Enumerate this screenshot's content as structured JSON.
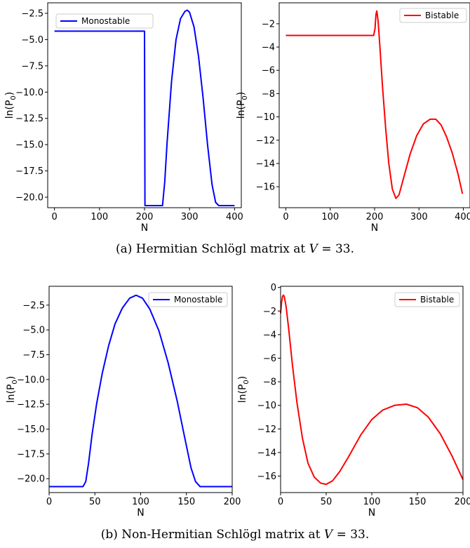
{
  "captions": {
    "a_prefix": "(a) Hermitian Schlögl matrix at ",
    "a_var": "V",
    "a_suffix": " = 33.",
    "b_prefix": "(b) Non-Hermitian Schlögl matrix at ",
    "b_var": "V",
    "b_suffix": " = 33."
  },
  "chart_data": [
    {
      "id": "a-left",
      "type": "line",
      "xlabel": "N",
      "ylabel": "ln(P0)",
      "xlim": [
        -15,
        415
      ],
      "ylim": [
        -21.0,
        -1.5
      ],
      "xticks": [
        0,
        100,
        200,
        300,
        400
      ],
      "yticks": [
        -2.5,
        -5.0,
        -7.5,
        -10.0,
        -12.5,
        -15.0,
        -17.5,
        -20.0
      ],
      "ytick_labels": [
        "−2.5",
        "−5.0",
        "−7.5",
        "−10.0",
        "−12.5",
        "−15.0",
        "−17.5",
        "−20.0"
      ],
      "legend": "top-left",
      "series": [
        {
          "name": "Monostable",
          "color": "#0000ff",
          "points": [
            [
              0,
              -4.2
            ],
            [
              200,
              -4.2
            ],
            [
              201,
              -20.8
            ],
            [
              240,
              -20.8
            ],
            [
              245,
              -18.5
            ],
            [
              250,
              -14.9
            ],
            [
              260,
              -9.0
            ],
            [
              270,
              -5.0
            ],
            [
              280,
              -3.0
            ],
            [
              290,
              -2.3
            ],
            [
              295,
              -2.2
            ],
            [
              300,
              -2.4
            ],
            [
              310,
              -3.8
            ],
            [
              320,
              -6.6
            ],
            [
              330,
              -10.5
            ],
            [
              340,
              -15.0
            ],
            [
              350,
              -18.8
            ],
            [
              358,
              -20.5
            ],
            [
              365,
              -20.8
            ],
            [
              400,
              -20.8
            ]
          ]
        }
      ]
    },
    {
      "id": "a-right",
      "type": "line",
      "xlabel": "N",
      "ylabel": "ln(P0)",
      "xlim": [
        -15,
        415
      ],
      "ylim": [
        -17.8,
        -0.2
      ],
      "xticks": [
        0,
        100,
        200,
        300,
        400
      ],
      "yticks": [
        -2,
        -4,
        -6,
        -8,
        -10,
        -12,
        -14,
        -16
      ],
      "ytick_labels": [
        "−2",
        "−4",
        "−6",
        "−8",
        "−10",
        "−12",
        "−14",
        "−16"
      ],
      "legend": "top-right",
      "series": [
        {
          "name": "Bistable",
          "color": "#ff0000",
          "points": [
            [
              0,
              -3.0
            ],
            [
              198,
              -3.0
            ],
            [
              201,
              -2.4
            ],
            [
              203,
              -1.2
            ],
            [
              205,
              -0.9
            ],
            [
              208,
              -1.8
            ],
            [
              212,
              -4.0
            ],
            [
              218,
              -7.5
            ],
            [
              225,
              -11.0
            ],
            [
              232,
              -14.0
            ],
            [
              240,
              -16.2
            ],
            [
              248,
              -17.0
            ],
            [
              255,
              -16.7
            ],
            [
              265,
              -15.3
            ],
            [
              280,
              -13.2
            ],
            [
              295,
              -11.6
            ],
            [
              310,
              -10.6
            ],
            [
              325,
              -10.2
            ],
            [
              338,
              -10.2
            ],
            [
              350,
              -10.7
            ],
            [
              362,
              -11.7
            ],
            [
              375,
              -13.1
            ],
            [
              388,
              -14.9
            ],
            [
              398,
              -16.6
            ]
          ]
        }
      ]
    },
    {
      "id": "b-left",
      "type": "line",
      "xlabel": "N",
      "ylabel": "ln(P0)",
      "xlim": [
        0,
        200
      ],
      "ylim": [
        -21.4,
        -0.6
      ],
      "xticks": [
        0,
        50,
        100,
        150,
        200
      ],
      "yticks": [
        -2.5,
        -5.0,
        -7.5,
        -10.0,
        -12.5,
        -15.0,
        -17.5,
        -20.0
      ],
      "ytick_labels": [
        "−2.5",
        "−5.0",
        "−7.5",
        "−10.0",
        "−12.5",
        "−15.0",
        "−17.5",
        "−20.0"
      ],
      "legend": "top-right",
      "series": [
        {
          "name": "Monostable",
          "color": "#0000ff",
          "points": [
            [
              0,
              -20.8
            ],
            [
              37,
              -20.8
            ],
            [
              40,
              -20.3
            ],
            [
              43,
              -18.5
            ],
            [
              47,
              -15.5
            ],
            [
              52,
              -12.4
            ],
            [
              58,
              -9.4
            ],
            [
              65,
              -6.6
            ],
            [
              72,
              -4.4
            ],
            [
              80,
              -2.8
            ],
            [
              88,
              -1.8
            ],
            [
              95,
              -1.5
            ],
            [
              102,
              -1.8
            ],
            [
              110,
              -2.9
            ],
            [
              120,
              -5.1
            ],
            [
              130,
              -8.3
            ],
            [
              140,
              -12.2
            ],
            [
              148,
              -15.8
            ],
            [
              155,
              -18.9
            ],
            [
              160,
              -20.3
            ],
            [
              165,
              -20.8
            ],
            [
              200,
              -20.8
            ]
          ]
        }
      ]
    },
    {
      "id": "b-right",
      "type": "line",
      "xlabel": "N",
      "ylabel": "ln(P0)",
      "xlim": [
        0,
        200
      ],
      "ylim": [
        -17.4,
        0.1
      ],
      "xticks": [
        0,
        50,
        100,
        150,
        200
      ],
      "yticks": [
        0,
        -2,
        -4,
        -6,
        -8,
        -10,
        -12,
        -14,
        -16
      ],
      "ytick_labels": [
        "0",
        "−2",
        "−4",
        "−6",
        "−8",
        "−10",
        "−12",
        "−14",
        "−16"
      ],
      "legend": "top-right",
      "series": [
        {
          "name": "Bistable",
          "color": "#ff0000",
          "points": [
            [
              0,
              -2.2
            ],
            [
              1,
              -1.3
            ],
            [
              2,
              -0.8
            ],
            [
              3,
              -0.65
            ],
            [
              4,
              -0.75
            ],
            [
              6,
              -1.6
            ],
            [
              9,
              -3.6
            ],
            [
              13,
              -6.6
            ],
            [
              18,
              -9.8
            ],
            [
              24,
              -12.8
            ],
            [
              30,
              -14.9
            ],
            [
              37,
              -16.1
            ],
            [
              44,
              -16.6
            ],
            [
              50,
              -16.7
            ],
            [
              57,
              -16.4
            ],
            [
              65,
              -15.6
            ],
            [
              75,
              -14.3
            ],
            [
              88,
              -12.5
            ],
            [
              100,
              -11.2
            ],
            [
              112,
              -10.4
            ],
            [
              125,
              -10.0
            ],
            [
              138,
              -9.9
            ],
            [
              150,
              -10.2
            ],
            [
              162,
              -11.0
            ],
            [
              175,
              -12.4
            ],
            [
              188,
              -14.3
            ],
            [
              200,
              -16.3
            ]
          ]
        }
      ]
    }
  ]
}
